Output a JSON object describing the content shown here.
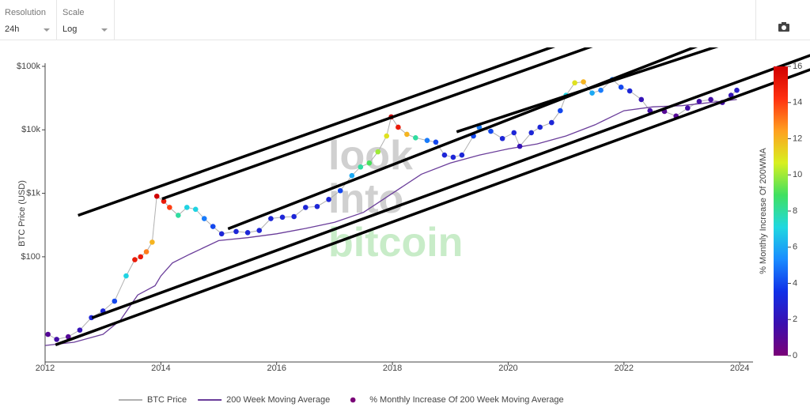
{
  "toolbar": {
    "resolution": {
      "label": "Resolution",
      "value": "24h"
    },
    "scale": {
      "label": "Scale",
      "value": "Log"
    }
  },
  "chart_data": {
    "type": "scatter",
    "y_label": "BTC Price (USD)",
    "log_y": true,
    "watermark": [
      "look",
      "into",
      "bitcoin"
    ],
    "xlim": [
      2012,
      2024.23
    ],
    "xticks": [
      2012,
      2014,
      2016,
      2018,
      2020,
      2022,
      2024
    ],
    "ylim": [
      2.2,
      112000
    ],
    "yticks": [
      {
        "value": 100,
        "label": "$100"
      },
      {
        "value": 1000,
        "label": "$1k"
      },
      {
        "value": 10000,
        "label": "$10k"
      },
      {
        "value": 100000,
        "label": "$100k"
      }
    ],
    "colorbar": {
      "label": "% Monthly  Increase Of 200WMA",
      "lim": [
        0,
        16
      ],
      "ticks": [
        0,
        2,
        4,
        6,
        8,
        10,
        12,
        14,
        16
      ],
      "colors": [
        "#7a0177",
        "#3a0fb0",
        "#1030e8",
        "#1a8cff",
        "#20d8e0",
        "#40e060",
        "#d8f020",
        "#ffa020",
        "#ff3010",
        "#d00000"
      ]
    },
    "series": [
      {
        "name": "BTC Price",
        "kind": "line",
        "color": "#b0b0b0",
        "x": [
          2012.05,
          2012.2,
          2012.4,
          2012.6,
          2012.8,
          2013.0,
          2013.2,
          2013.4,
          2013.55,
          2013.65,
          2013.75,
          2013.85,
          2013.93,
          2014.05,
          2014.15,
          2014.3,
          2014.45,
          2014.6,
          2014.75,
          2014.9,
          2015.05,
          2015.3,
          2015.5,
          2015.7,
          2015.9,
          2016.1,
          2016.3,
          2016.5,
          2016.7,
          2016.9,
          2017.1,
          2017.3,
          2017.45,
          2017.6,
          2017.75,
          2017.9,
          2017.98,
          2018.1,
          2018.25,
          2018.4,
          2018.6,
          2018.75,
          2018.9,
          2019.05,
          2019.2,
          2019.4,
          2019.5,
          2019.7,
          2019.9,
          2020.1,
          2020.2,
          2020.4,
          2020.55,
          2020.75,
          2020.9,
          2021.0,
          2021.15,
          2021.3,
          2021.45,
          2021.6,
          2021.8,
          2021.95,
          2022.1,
          2022.3,
          2022.45,
          2022.7,
          2022.9,
          2023.1,
          2023.3,
          2023.5,
          2023.7,
          2023.85,
          2023.95
        ],
        "values": [
          6,
          5,
          5.5,
          7,
          11,
          14,
          20,
          50,
          90,
          100,
          120,
          170,
          900,
          750,
          600,
          450,
          600,
          560,
          400,
          300,
          230,
          250,
          240,
          260,
          400,
          420,
          430,
          600,
          620,
          800,
          1100,
          1900,
          2600,
          3000,
          4500,
          8000,
          16000,
          11000,
          8500,
          7500,
          6800,
          6400,
          4000,
          3700,
          4000,
          8000,
          11000,
          9500,
          7300,
          9000,
          5500,
          9000,
          11000,
          13000,
          20000,
          35000,
          55000,
          57000,
          38000,
          42000,
          62000,
          47000,
          41000,
          30000,
          20000,
          19500,
          16500,
          22000,
          28000,
          30000,
          27000,
          35000,
          42000
        ]
      },
      {
        "name": "200 Week Moving Average",
        "kind": "line",
        "color": "#6a3d9a",
        "x": [
          2012.0,
          2012.5,
          2013.0,
          2013.3,
          2013.6,
          2013.9,
          2014.0,
          2014.2,
          2014.5,
          2015.0,
          2015.5,
          2016.0,
          2016.5,
          2017.0,
          2017.5,
          2018.0,
          2018.5,
          2019.0,
          2019.5,
          2020.0,
          2020.5,
          2021.0,
          2021.5,
          2022.0,
          2022.5,
          2023.0,
          2023.5,
          2023.95
        ],
        "values": [
          4,
          4.5,
          6,
          10,
          25,
          35,
          50,
          80,
          110,
          180,
          200,
          230,
          280,
          350,
          500,
          1000,
          2000,
          3000,
          4000,
          5000,
          6000,
          8000,
          12000,
          20000,
          23000,
          24000,
          27000,
          30000
        ]
      },
      {
        "name": "% Monthly Increase Of 200 Week Moving Average",
        "kind": "dots",
        "color": "#7a0177",
        "color_values": [
          1,
          1.5,
          1,
          2,
          3,
          3,
          4,
          7,
          15,
          15,
          13,
          12,
          16,
          15,
          14,
          8,
          7,
          7,
          5,
          4,
          3,
          3,
          3,
          3,
          3,
          3,
          3,
          3,
          3,
          3,
          4,
          6,
          8,
          9,
          10,
          11,
          16,
          15,
          12,
          8,
          5,
          4,
          3,
          3,
          3,
          4,
          5,
          4,
          3,
          3,
          2,
          3,
          3,
          3,
          4,
          7,
          11,
          12,
          6,
          5,
          5,
          4,
          3,
          2,
          1.5,
          1,
          1,
          1.5,
          1.5,
          1.5,
          1.5,
          2,
          2.5
        ]
      }
    ],
    "trend_lines": {
      "color": "#000000",
      "lines": [
        {
          "x": [
            2012.57,
            2023.04
          ],
          "values": [
            449,
            1100000
          ]
        },
        {
          "x": [
            2014.02,
            2023.69
          ],
          "values": [
            818,
            1100000
          ]
        },
        {
          "x": [
            2015.16,
            2025.03
          ],
          "values": [
            276,
            880000
          ]
        },
        {
          "x": [
            2019.11,
            2025.22
          ],
          "values": [
            9300,
            624000
          ]
        },
        {
          "x": [
            2012.81,
            2025.22
          ],
          "values": [
            10.9,
            149000
          ]
        },
        {
          "x": [
            2012.18,
            2025.22
          ],
          "values": [
            4.1,
            89000
          ]
        }
      ]
    }
  }
}
